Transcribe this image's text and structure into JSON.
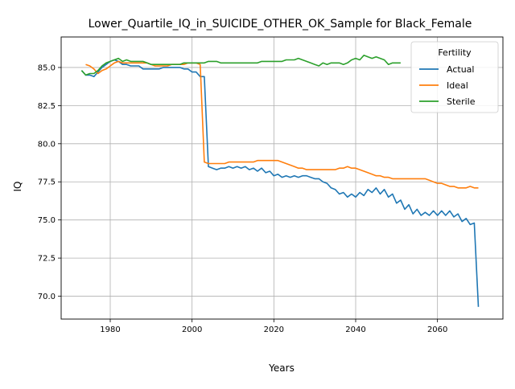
{
  "chart_data": {
    "type": "line",
    "title": "Lower_Quartile_IQ_in_SUICIDE_OTHER_OK_Sample for Black_Female",
    "xlabel": "Years",
    "ylabel": "IQ",
    "xlim": [
      1968,
      2076
    ],
    "ylim": [
      68.5,
      87.0
    ],
    "xticks": [
      1980,
      2000,
      2020,
      2040,
      2060
    ],
    "yticks": [
      70.0,
      72.5,
      75.0,
      77.5,
      80.0,
      82.5,
      85.0
    ],
    "xtick_labels": [
      "1980",
      "2000",
      "2020",
      "2040",
      "2060"
    ],
    "ytick_labels": [
      "70.0",
      "72.5",
      "75.0",
      "77.5",
      "80.0",
      "82.5",
      "85.0"
    ],
    "grid": true,
    "legend": {
      "title": "Fertility",
      "placement": "top-right"
    },
    "series": [
      {
        "name": "Actual",
        "color": "#1f77b4",
        "x": [
          1973,
          1974,
          1975,
          1976,
          1977,
          1978,
          1979,
          1980,
          1981,
          1982,
          1983,
          1984,
          1985,
          1986,
          1987,
          1988,
          1989,
          1990,
          1991,
          1992,
          1993,
          1994,
          1995,
          1996,
          1997,
          1998,
          1999,
          2000,
          2001,
          2002,
          2003,
          2004,
          2005,
          2006,
          2007,
          2008,
          2009,
          2010,
          2011,
          2012,
          2013,
          2014,
          2015,
          2016,
          2017,
          2018,
          2019,
          2020,
          2021,
          2022,
          2023,
          2024,
          2025,
          2026,
          2027,
          2028,
          2029,
          2030,
          2031,
          2032,
          2033,
          2034,
          2035,
          2036,
          2037,
          2038,
          2039,
          2040,
          2041,
          2042,
          2043,
          2044,
          2045,
          2046,
          2047,
          2048,
          2049,
          2050,
          2051,
          2052,
          2053,
          2054,
          2055,
          2056,
          2057,
          2058,
          2059,
          2060,
          2061,
          2062,
          2063,
          2064,
          2065,
          2066,
          2067,
          2068,
          2069,
          2070
        ],
        "values": [
          84.8,
          84.5,
          84.5,
          84.4,
          84.7,
          85.0,
          85.2,
          85.4,
          85.5,
          85.4,
          85.2,
          85.2,
          85.1,
          85.1,
          85.1,
          84.9,
          84.9,
          84.9,
          84.9,
          84.9,
          85.0,
          85.0,
          85.0,
          85.0,
          85.0,
          84.9,
          84.9,
          84.7,
          84.7,
          84.4,
          84.4,
          78.5,
          78.4,
          78.3,
          78.4,
          78.4,
          78.5,
          78.4,
          78.5,
          78.4,
          78.5,
          78.3,
          78.4,
          78.2,
          78.4,
          78.1,
          78.2,
          77.9,
          78.0,
          77.8,
          77.9,
          77.8,
          77.9,
          77.8,
          77.9,
          77.9,
          77.8,
          77.7,
          77.7,
          77.5,
          77.4,
          77.1,
          77.0,
          76.7,
          76.8,
          76.5,
          76.7,
          76.5,
          76.8,
          76.6,
          77.0,
          76.8,
          77.1,
          76.7,
          77.0,
          76.5,
          76.7,
          76.1,
          76.3,
          75.7,
          76.0,
          75.4,
          75.7,
          75.3,
          75.5,
          75.3,
          75.6,
          75.3,
          75.6,
          75.3,
          75.6,
          75.2,
          75.4,
          74.9,
          75.1,
          74.7,
          74.8,
          69.3
        ]
      },
      {
        "name": "Ideal",
        "color": "#ff7f0e",
        "x": [
          1974,
          1975,
          1976,
          1977,
          1978,
          1979,
          1980,
          1981,
          1982,
          1983,
          1984,
          1985,
          1986,
          1987,
          1988,
          1989,
          1990,
          1991,
          1992,
          1993,
          1994,
          1995,
          1996,
          1997,
          1998,
          1999,
          2000,
          2001,
          2002,
          2003,
          2004,
          2005,
          2006,
          2007,
          2008,
          2009,
          2010,
          2011,
          2012,
          2013,
          2014,
          2015,
          2016,
          2017,
          2018,
          2019,
          2020,
          2021,
          2022,
          2023,
          2024,
          2025,
          2026,
          2027,
          2028,
          2029,
          2030,
          2031,
          2032,
          2033,
          2034,
          2035,
          2036,
          2037,
          2038,
          2039,
          2040,
          2041,
          2042,
          2043,
          2044,
          2045,
          2046,
          2047,
          2048,
          2049,
          2050,
          2051,
          2052,
          2053,
          2054,
          2055,
          2056,
          2057,
          2058,
          2059,
          2060,
          2061,
          2062,
          2063,
          2064,
          2065,
          2066,
          2067,
          2068,
          2069,
          2070
        ],
        "values": [
          85.2,
          85.1,
          84.9,
          84.6,
          84.8,
          84.9,
          85.1,
          85.3,
          85.4,
          85.3,
          85.3,
          85.3,
          85.3,
          85.3,
          85.3,
          85.3,
          85.2,
          85.1,
          85.1,
          85.1,
          85.1,
          85.2,
          85.2,
          85.2,
          85.2,
          85.3,
          85.3,
          85.3,
          85.2,
          78.8,
          78.7,
          78.7,
          78.7,
          78.7,
          78.7,
          78.8,
          78.8,
          78.8,
          78.8,
          78.8,
          78.8,
          78.8,
          78.9,
          78.9,
          78.9,
          78.9,
          78.9,
          78.9,
          78.8,
          78.7,
          78.6,
          78.5,
          78.4,
          78.4,
          78.3,
          78.3,
          78.3,
          78.3,
          78.3,
          78.3,
          78.3,
          78.3,
          78.4,
          78.4,
          78.5,
          78.4,
          78.4,
          78.3,
          78.2,
          78.1,
          78.0,
          77.9,
          77.9,
          77.8,
          77.8,
          77.7,
          77.7,
          77.7,
          77.7,
          77.7,
          77.7,
          77.7,
          77.7,
          77.7,
          77.6,
          77.5,
          77.4,
          77.4,
          77.3,
          77.2,
          77.2,
          77.1,
          77.1,
          77.1,
          77.2,
          77.1,
          77.1
        ]
      },
      {
        "name": "Sterile",
        "color": "#2ca02c",
        "x": [
          1973,
          1974,
          1975,
          1976,
          1977,
          1978,
          1979,
          1980,
          1981,
          1982,
          1983,
          1984,
          1985,
          1986,
          1987,
          1988,
          1989,
          1990,
          1991,
          1992,
          1993,
          1994,
          1995,
          1996,
          1997,
          1998,
          1999,
          2000,
          2001,
          2002,
          2003,
          2004,
          2005,
          2006,
          2007,
          2008,
          2009,
          2010,
          2011,
          2012,
          2013,
          2014,
          2015,
          2016,
          2017,
          2018,
          2019,
          2020,
          2021,
          2022,
          2023,
          2024,
          2025,
          2026,
          2027,
          2028,
          2029,
          2030,
          2031,
          2032,
          2033,
          2034,
          2035,
          2036,
          2037,
          2038,
          2039,
          2040,
          2041,
          2042,
          2043,
          2044,
          2045,
          2046,
          2047,
          2048,
          2049,
          2050,
          2051
        ],
        "values": [
          84.8,
          84.5,
          84.6,
          84.6,
          84.8,
          85.1,
          85.3,
          85.4,
          85.5,
          85.6,
          85.4,
          85.5,
          85.4,
          85.4,
          85.4,
          85.4,
          85.3,
          85.2,
          85.2,
          85.2,
          85.2,
          85.2,
          85.2,
          85.2,
          85.2,
          85.3,
          85.3,
          85.3,
          85.3,
          85.3,
          85.3,
          85.4,
          85.4,
          85.4,
          85.3,
          85.3,
          85.3,
          85.3,
          85.3,
          85.3,
          85.3,
          85.3,
          85.3,
          85.3,
          85.4,
          85.4,
          85.4,
          85.4,
          85.4,
          85.4,
          85.5,
          85.5,
          85.5,
          85.6,
          85.5,
          85.4,
          85.3,
          85.2,
          85.1,
          85.3,
          85.2,
          85.3,
          85.3,
          85.3,
          85.2,
          85.3,
          85.5,
          85.6,
          85.5,
          85.8,
          85.7,
          85.6,
          85.7,
          85.6,
          85.5,
          85.2,
          85.3,
          85.3,
          85.3
        ]
      }
    ]
  }
}
